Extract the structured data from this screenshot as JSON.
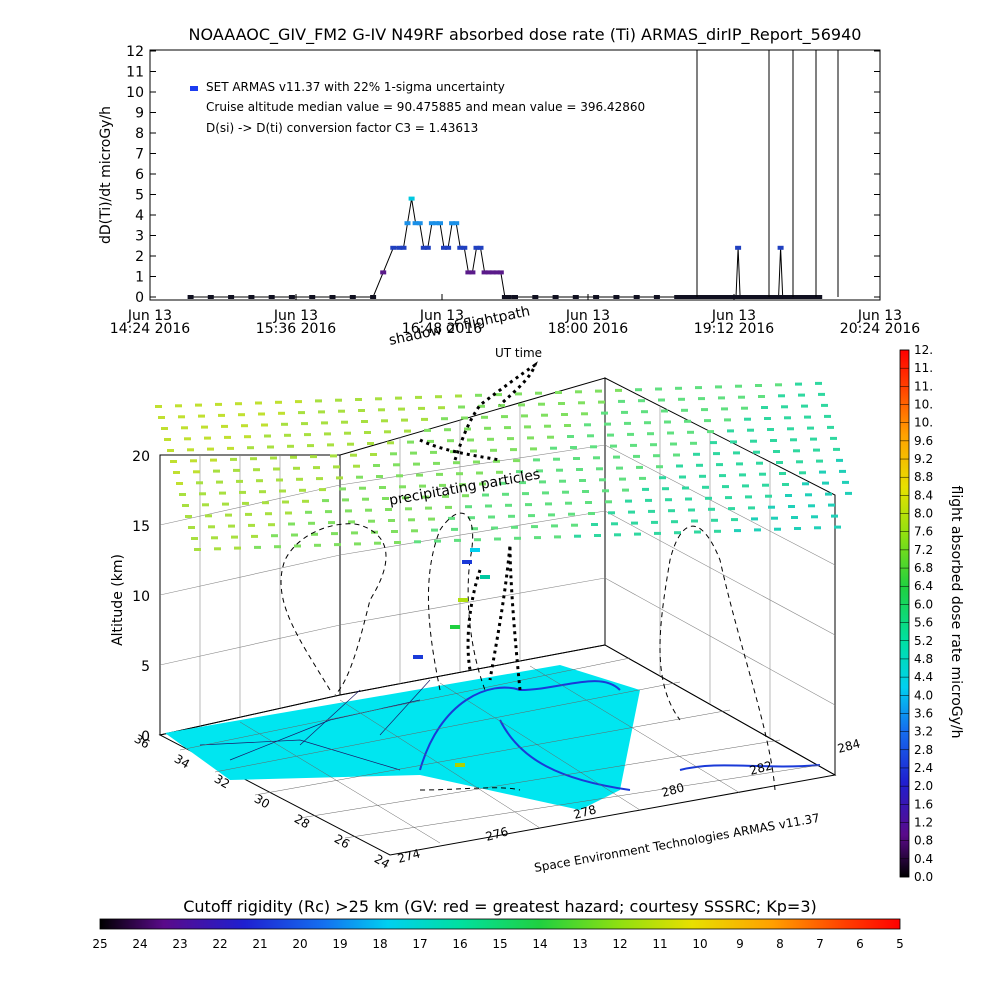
{
  "title": "NOAAAOC_GIV_FM2 G-IV    N49RF  absorbed dose rate (Ti) ARMAS_dirIP_Report_56940",
  "chart_data": [
    {
      "type": "scatter",
      "ylabel": "dD(Ti)/dt microGy/h",
      "ylim": [
        0,
        12
      ],
      "y_ticks": [
        "0",
        "1",
        "2",
        "3",
        "4",
        "5",
        "6",
        "7",
        "8",
        "9",
        "10",
        "11",
        "12"
      ],
      "x_ticks": [
        {
          "line1": "Jun 13",
          "line2": "14:24 2016"
        },
        {
          "line1": "Jun 13",
          "line2": "15:36 2016"
        },
        {
          "line1": "Jun 13",
          "line2": "16:48 2016"
        },
        {
          "line1": "Jun 13",
          "line2": "18:00 2016"
        },
        {
          "line1": "Jun 13",
          "line2": "19:12 2016"
        },
        {
          "line1": "Jun 13",
          "line2": "20:24 2016"
        }
      ],
      "xlim_minutes_after_1424": [
        0,
        360
      ],
      "legend": {
        "marker_color": "#1c3cf0",
        "lines": [
          "SET ARMAS v11.37 with 22% 1-sigma uncertainty",
          "Cruise altitude median value = 90.475885 and mean value = 396.42860",
          "D(si) -> D(ti) conversion factor C3 = 1.43613"
        ]
      },
      "series": [
        {
          "x_minutes": [
            20,
            30,
            40,
            50,
            60,
            70,
            80,
            90,
            100,
            110,
            115,
            120,
            123,
            125,
            127,
            129,
            131,
            133,
            135,
            137,
            139,
            141,
            143,
            145,
            147,
            149,
            151,
            153,
            155,
            157,
            159,
            161,
            163,
            165,
            167,
            169,
            171,
            173,
            175,
            177,
            180,
            190,
            200,
            210,
            220,
            230,
            240,
            250,
            260,
            270,
            280,
            290,
            300
          ],
          "y": [
            0,
            0,
            0,
            0,
            0,
            0,
            0,
            0,
            0,
            0,
            1.2,
            2.4,
            2.4,
            2.4,
            3.6,
            4.8,
            3.6,
            3.6,
            2.4,
            2.4,
            3.6,
            3.6,
            3.6,
            2.4,
            2.4,
            3.6,
            3.6,
            2.4,
            2.4,
            1.2,
            1.2,
            2.4,
            2.4,
            1.2,
            1.2,
            1.2,
            1.2,
            1.2,
            0,
            0,
            0,
            0,
            0,
            0,
            0,
            0,
            0,
            0,
            0,
            0,
            0,
            0,
            0
          ]
        },
        {
          "x_minutes": [
            262,
            263,
            264,
            265,
            266,
            267,
            268,
            269,
            270,
            271,
            272,
            273,
            274,
            275,
            276,
            277,
            278,
            279,
            280,
            281,
            282,
            283,
            284,
            285,
            286,
            287,
            288,
            289,
            290,
            291,
            292,
            293,
            294,
            295,
            296,
            297,
            298,
            299,
            300,
            301,
            302,
            303,
            304,
            305,
            306,
            307,
            308,
            309,
            310,
            311,
            312,
            313,
            314,
            315,
            316,
            317,
            318,
            319,
            320,
            321,
            322,
            323,
            324,
            325,
            326,
            327,
            328,
            329,
            330
          ],
          "y": [
            0,
            0,
            0,
            0,
            0,
            0,
            0,
            0,
            0,
            0,
            0,
            0,
            0,
            0,
            0,
            0,
            0,
            0,
            0,
            0,
            0,
            0,
            0,
            0,
            0,
            0,
            0,
            0,
            2.4,
            0,
            0,
            0,
            0,
            0,
            0,
            0,
            0,
            0,
            0,
            0,
            0,
            0,
            0,
            0,
            0,
            0,
            0,
            0,
            0,
            2.4,
            0,
            0,
            0,
            0,
            0,
            0,
            0,
            0,
            0,
            0,
            0,
            0,
            0,
            0,
            0,
            0,
            0,
            0,
            0
          ]
        }
      ]
    },
    {
      "type": "scatter",
      "zlabel": "Altitude (km)",
      "z_ticks": [
        "0",
        "5",
        "10",
        "15",
        "20"
      ],
      "lat_ticks": [
        "36",
        "34",
        "32",
        "30",
        "28",
        "26",
        "24"
      ],
      "lon_ticks": [
        "274",
        "276",
        "278",
        "280",
        "282",
        "284"
      ],
      "annotations": {
        "shadow": "shadow of flightpath",
        "ut_time": "UT time",
        "precip": "precipitating particles",
        "credit": "Space Environment Technologies ARMAS v11.37"
      },
      "right_colorbar": {
        "label": "flight absorbed dose rate microGy/h",
        "ticks": [
          "0.0",
          "0.4",
          "0.8",
          "1.2",
          "1.6",
          "2.0",
          "2.4",
          "2.8",
          "3.2",
          "3.6",
          "4.0",
          "4.4",
          "4.8",
          "5.2",
          "5.6",
          "6.0",
          "6.4",
          "6.8",
          "7.2",
          "7.6",
          "8.0",
          "8.4",
          "8.8",
          "9.2",
          "9.6",
          "10.",
          "10.",
          "11.",
          "11.",
          "12."
        ]
      },
      "bottom_colorbar": {
        "label": "Cutoff rigidity (Rc) >25 km (GV: red = greatest hazard; courtesy SSSRC; Kp=3)",
        "ticks": [
          "25",
          "24",
          "23",
          "22",
          "21",
          "20",
          "19",
          "18",
          "17",
          "16",
          "15",
          "14",
          "13",
          "12",
          "11",
          "10",
          "9",
          "8",
          "7",
          "6",
          "5"
        ]
      }
    }
  ]
}
